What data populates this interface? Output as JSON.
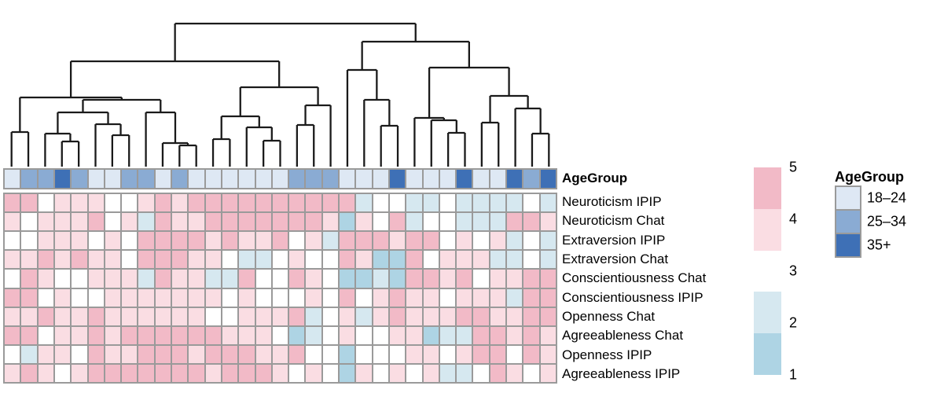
{
  "chart_data": {
    "type": "heatmap",
    "title": "",
    "rows": [
      "Neuroticism IPIP",
      "Neuroticism Chat",
      "Extraversion IPIP",
      "Extraversion Chat",
      "Conscientiousness Chat",
      "Conscientiousness IPIP",
      "Openness Chat",
      "Agreeableness Chat",
      "Openness IPIP",
      "Agreeableness IPIP"
    ],
    "n_columns": 33,
    "value_scale": {
      "min": 1,
      "max": 5,
      "tick_labels": [
        "5",
        "4",
        "3",
        "2",
        "1"
      ]
    },
    "matrix": [
      [
        5,
        5,
        3,
        4,
        4,
        4,
        3,
        3,
        4,
        5,
        4,
        5,
        5,
        5,
        5,
        5,
        5,
        5,
        5,
        5,
        5,
        2,
        3,
        3,
        2,
        2,
        3,
        2,
        2,
        2,
        2,
        3,
        2
      ],
      [
        4,
        3,
        4,
        4,
        4,
        5,
        3,
        4,
        2,
        5,
        4,
        4,
        5,
        5,
        5,
        5,
        5,
        5,
        5,
        4,
        1,
        4,
        3,
        5,
        2,
        3,
        3,
        2,
        2,
        2,
        5,
        5,
        4
      ],
      [
        3,
        3,
        4,
        4,
        4,
        3,
        4,
        3,
        5,
        5,
        5,
        5,
        4,
        5,
        4,
        4,
        5,
        3,
        4,
        2,
        5,
        5,
        5,
        4,
        5,
        5,
        3,
        4,
        3,
        4,
        2,
        3,
        2
      ],
      [
        4,
        4,
        5,
        4,
        5,
        4,
        4,
        3,
        5,
        5,
        5,
        4,
        4,
        3,
        2,
        2,
        3,
        4,
        3,
        3,
        5,
        4,
        1,
        1,
        5,
        3,
        4,
        4,
        4,
        2,
        2,
        3,
        2
      ],
      [
        3,
        5,
        4,
        3,
        3,
        4,
        4,
        4,
        2,
        5,
        4,
        4,
        2,
        2,
        5,
        3,
        3,
        5,
        4,
        3,
        1,
        1,
        2,
        1,
        5,
        5,
        4,
        5,
        3,
        4,
        4,
        5,
        5
      ],
      [
        5,
        5,
        3,
        4,
        3,
        3,
        4,
        4,
        4,
        4,
        4,
        4,
        4,
        3,
        4,
        3,
        3,
        3,
        4,
        3,
        5,
        3,
        4,
        5,
        4,
        4,
        3,
        4,
        4,
        4,
        2,
        5,
        5
      ],
      [
        4,
        4,
        5,
        4,
        4,
        5,
        4,
        4,
        4,
        4,
        4,
        4,
        3,
        3,
        4,
        4,
        4,
        5,
        2,
        3,
        4,
        2,
        4,
        5,
        4,
        4,
        4,
        5,
        5,
        4,
        4,
        5,
        5
      ],
      [
        5,
        5,
        3,
        4,
        4,
        5,
        4,
        5,
        5,
        5,
        5,
        5,
        5,
        4,
        4,
        4,
        3,
        1,
        2,
        3,
        4,
        3,
        3,
        4,
        4,
        1,
        2,
        2,
        5,
        5,
        4,
        5,
        4
      ],
      [
        3,
        2,
        4,
        4,
        3,
        5,
        4,
        4,
        5,
        5,
        5,
        4,
        5,
        5,
        5,
        4,
        4,
        5,
        3,
        3,
        1,
        3,
        3,
        3,
        4,
        4,
        3,
        4,
        5,
        5,
        3,
        5,
        4
      ],
      [
        4,
        5,
        4,
        3,
        4,
        5,
        5,
        5,
        5,
        5,
        5,
        5,
        4,
        5,
        5,
        5,
        4,
        3,
        4,
        3,
        1,
        4,
        3,
        4,
        3,
        4,
        2,
        2,
        3,
        5,
        4,
        3,
        4
      ]
    ],
    "column_annotation": {
      "name": "AgeGroup",
      "groups": [
        "18–24",
        "25–34",
        "35+"
      ],
      "per_column": [
        0,
        1,
        1,
        2,
        1,
        0,
        0,
        1,
        1,
        0,
        1,
        0,
        0,
        0,
        0,
        0,
        0,
        1,
        1,
        1,
        0,
        0,
        0,
        2,
        0,
        0,
        0,
        2,
        0,
        0,
        2,
        1,
        2
      ]
    },
    "column_dendrogram_tree": [
      30,
      [
        78,
        [
          124,
          [
            168,
            1,
            2
          ],
          [
            127,
            [
              143,
              [
                170,
                3,
                [
                  180,
                  4,
                  5
                ]
              ],
              [
                158,
                6,
                [
                  172,
                  7,
                  8
                ]
              ]
            ],
            [
              143,
              9,
              [
                182,
                10,
                [
                  185,
                  11,
                  12
                ]
              ]
            ]
          ]
        ],
        [
          111,
          [
            148,
            [
              177,
              13,
              14
            ],
            [
              162,
              15,
              [
                179,
                16,
                17
              ]
            ]
          ],
          [
            134,
            [
              159,
              18,
              19
            ],
            20
          ]
        ]
      ],
      [
        53,
        [
          89,
          21,
          [
            127,
            22,
            [
              160,
              23,
              24
            ]
          ]
        ],
        [
          86,
          [
            150,
            25,
            [
              153,
              26,
              [
                169,
                27,
                28
              ]
            ]
          ],
          [
            122,
            [
              156,
              29,
              30
            ],
            [
              138,
              31,
              [
                170,
                32,
                33
              ]
            ]
          ]
        ]
      ]
    ],
    "legend_position": "right"
  },
  "style": {
    "value_colors": {
      "1": "#aed4e4",
      "2": "#d6e8f0",
      "3": "#ffffff",
      "4": "#fadde3",
      "5": "#f2bac7"
    },
    "age_colors": [
      "#dee8f4",
      "#8aabd3",
      "#3e70b6"
    ],
    "grid_color": "#9a9a9a",
    "dendro_line_color": "#1a1a1a"
  },
  "value_legend": {
    "tick_labels": [
      "5",
      "4",
      "3",
      "2",
      "1"
    ],
    "segment_colors": [
      "#f2bac7",
      "#fadde3",
      "#ffffff",
      "#d6e8f0",
      "#aed4e4"
    ]
  },
  "age_legend": {
    "title": "AgeGroup",
    "items": [
      {
        "label": "18–24",
        "color": "#dee8f4"
      },
      {
        "label": "25–34",
        "color": "#8aabd3"
      },
      {
        "label": "35+",
        "color": "#3e70b6"
      }
    ]
  }
}
